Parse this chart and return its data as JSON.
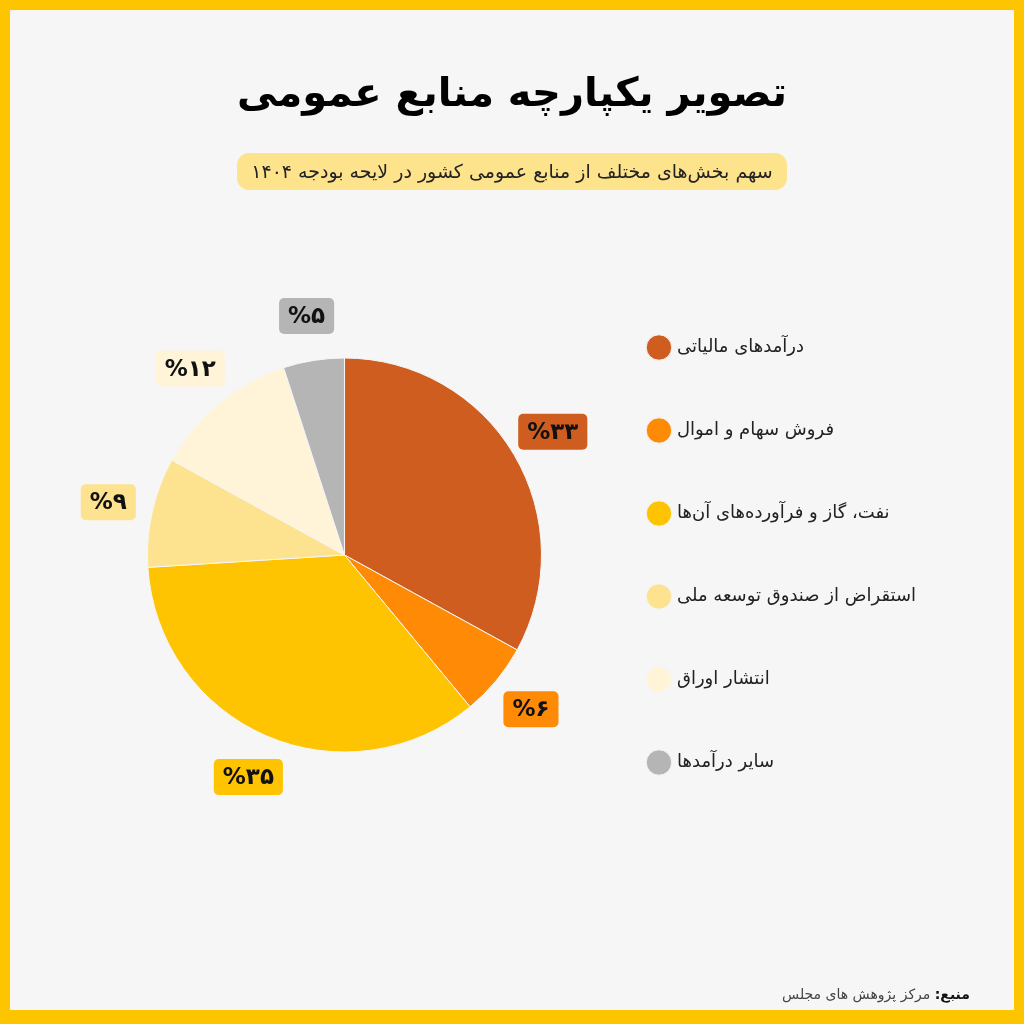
{
  "chart_data": {
    "type": "pie",
    "title": "تصویر یکپارچه منابع عمومی",
    "subtitle": "سهم بخش‌های مختلف از منابع عمومی کشور در لایحه بودجه ۱۴۰۴",
    "categories": [
      "درآمدهای مالیاتی",
      "فروش سهام و اموال",
      "نفت، گاز و فرآورده‌های آن‌ها",
      "استقراض از صندوق توسعه ملی",
      "انتشار اوراق",
      "سایر درآمدها"
    ],
    "values": [
      33,
      6,
      35,
      9,
      12,
      5
    ],
    "colors": [
      "#cf5d1f",
      "#fe8a05",
      "#fec402",
      "#fde390",
      "#fff4d8",
      "#b5b5b5"
    ],
    "value_labels": [
      "%۳۳",
      "%۶",
      "%۳۵",
      "%۹",
      "%۱۲",
      "%۵"
    ],
    "legend": "right",
    "annotations": [
      "منبع: مرکز پژوهش های مجلس"
    ]
  }
}
